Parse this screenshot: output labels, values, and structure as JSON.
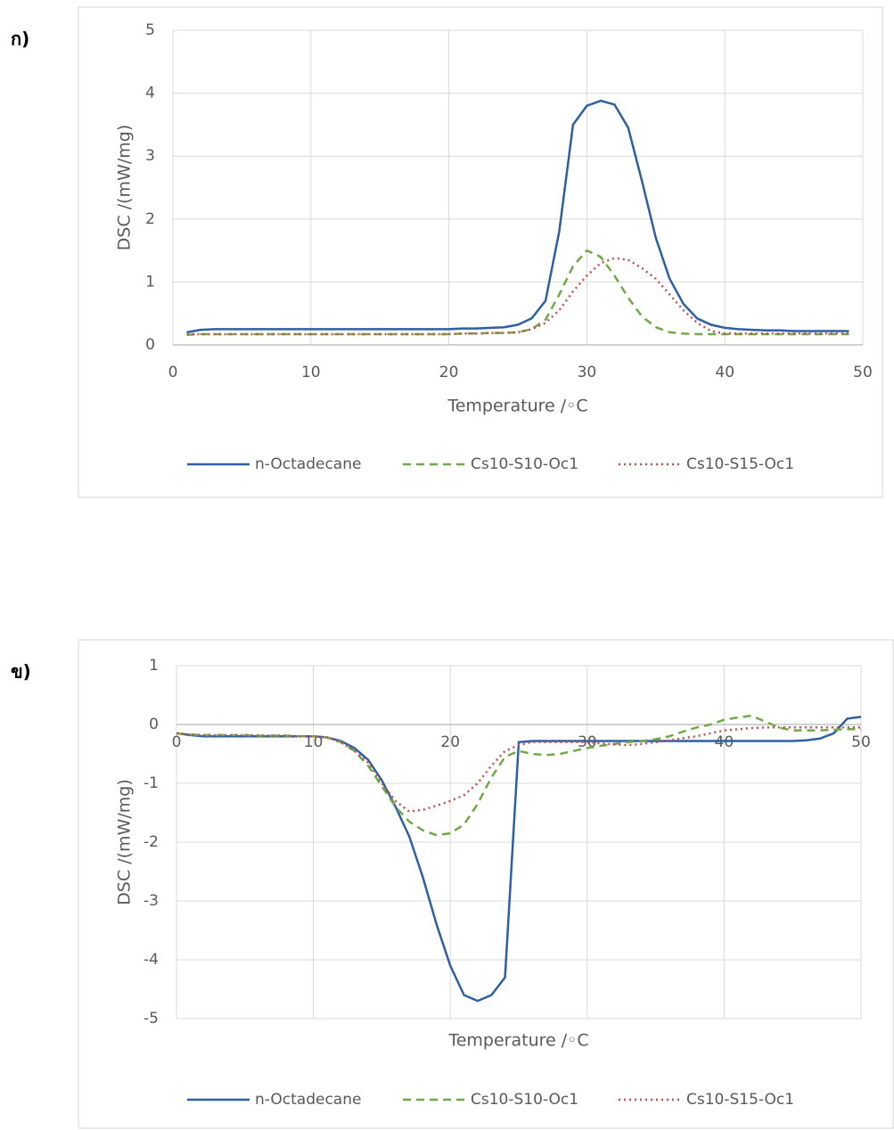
{
  "chart_data": [
    {
      "type": "line",
      "panel_label": "ก)",
      "xlabel": "Temperature /◦C",
      "ylabel": "DSC /(mW/mg)",
      "xlim": [
        0,
        50
      ],
      "xticks": [
        0,
        10,
        20,
        30,
        40,
        50
      ],
      "ylim": [
        0,
        5
      ],
      "yticks": [
        0,
        1,
        2,
        3,
        4,
        5
      ],
      "grid": true,
      "x": [
        0,
        1,
        2,
        3,
        4,
        5,
        6,
        7,
        8,
        9,
        10,
        11,
        12,
        13,
        14,
        15,
        16,
        17,
        18,
        19,
        20,
        21,
        22,
        23,
        24,
        25,
        26,
        27,
        28,
        29,
        30,
        31,
        32,
        33,
        34,
        35,
        36,
        37,
        38,
        39,
        40,
        41,
        42,
        43,
        44,
        45,
        46,
        47,
        48,
        49,
        50
      ],
      "series": [
        {
          "name": "n-Octadecane",
          "color": "#2e5fa3",
          "dash": "solid",
          "values": [
            null,
            0.2,
            0.24,
            0.25,
            0.25,
            0.25,
            0.25,
            0.25,
            0.25,
            0.25,
            0.25,
            0.25,
            0.25,
            0.25,
            0.25,
            0.25,
            0.25,
            0.25,
            0.25,
            0.25,
            0.25,
            0.26,
            0.26,
            0.27,
            0.28,
            0.32,
            0.42,
            0.7,
            1.8,
            3.5,
            3.8,
            3.88,
            3.82,
            3.45,
            2.6,
            1.7,
            1.05,
            0.65,
            0.42,
            0.32,
            0.27,
            0.25,
            0.24,
            0.23,
            0.23,
            0.22,
            0.22,
            0.22,
            0.22,
            0.22,
            null
          ]
        },
        {
          "name": "Cs10-S10-Oc1",
          "color": "#70a84a",
          "dash": "dashed",
          "values": [
            null,
            0.16,
            0.17,
            0.17,
            0.17,
            0.17,
            0.17,
            0.17,
            0.17,
            0.17,
            0.17,
            0.17,
            0.17,
            0.17,
            0.17,
            0.17,
            0.17,
            0.17,
            0.17,
            0.17,
            0.17,
            0.18,
            0.18,
            0.19,
            0.19,
            0.2,
            0.25,
            0.4,
            0.8,
            1.25,
            1.5,
            1.4,
            1.1,
            0.75,
            0.45,
            0.28,
            0.2,
            0.18,
            0.17,
            0.17,
            0.17,
            0.17,
            0.17,
            0.17,
            0.17,
            0.17,
            0.17,
            0.17,
            0.17,
            0.17,
            null
          ]
        },
        {
          "name": "Cs10-S15-Oc1",
          "color": "#c0504d",
          "dash": "dotted",
          "values": [
            null,
            0.17,
            0.17,
            0.17,
            0.17,
            0.17,
            0.17,
            0.17,
            0.17,
            0.17,
            0.17,
            0.17,
            0.17,
            0.17,
            0.17,
            0.17,
            0.17,
            0.17,
            0.17,
            0.17,
            0.17,
            0.18,
            0.18,
            0.19,
            0.19,
            0.2,
            0.25,
            0.35,
            0.55,
            0.85,
            1.1,
            1.3,
            1.38,
            1.35,
            1.22,
            1.05,
            0.8,
            0.55,
            0.35,
            0.22,
            0.18,
            0.18,
            0.18,
            0.18,
            0.18,
            0.18,
            0.18,
            0.18,
            0.18,
            0.18,
            null
          ]
        }
      ]
    },
    {
      "type": "line",
      "panel_label": "ข)",
      "xlabel": "Temperature /◦C",
      "ylabel": "DSC /(mW/mg)",
      "xlim": [
        0,
        50
      ],
      "xticks": [
        0,
        10,
        20,
        30,
        40,
        50
      ],
      "ylim": [
        -5,
        1
      ],
      "yticks": [
        -5,
        -4,
        -3,
        -2,
        -1,
        0,
        1
      ],
      "grid": true,
      "x": [
        0,
        1,
        2,
        3,
        4,
        5,
        6,
        7,
        8,
        9,
        10,
        11,
        12,
        13,
        14,
        15,
        16,
        17,
        18,
        19,
        20,
        21,
        22,
        23,
        24,
        25,
        26,
        27,
        28,
        29,
        30,
        31,
        32,
        33,
        34,
        35,
        36,
        37,
        38,
        39,
        40,
        41,
        42,
        43,
        44,
        45,
        46,
        47,
        48,
        49,
        50
      ],
      "series": [
        {
          "name": "n-Octadecane",
          "color": "#2e5fa3",
          "dash": "solid",
          "values": [
            -0.15,
            -0.18,
            -0.2,
            -0.2,
            -0.2,
            -0.2,
            -0.2,
            -0.2,
            -0.2,
            -0.2,
            -0.2,
            -0.22,
            -0.28,
            -0.4,
            -0.6,
            -0.95,
            -1.4,
            -1.9,
            -2.6,
            -3.4,
            -4.1,
            -4.6,
            -4.7,
            -4.6,
            -4.3,
            -0.3,
            -0.28,
            -0.28,
            -0.28,
            -0.28,
            -0.28,
            -0.28,
            -0.28,
            -0.28,
            -0.28,
            -0.28,
            -0.28,
            -0.28,
            -0.28,
            -0.28,
            -0.28,
            -0.28,
            -0.28,
            -0.28,
            -0.28,
            -0.28,
            -0.27,
            -0.24,
            -0.15,
            0.1,
            0.13
          ]
        },
        {
          "name": "Cs10-S10-Oc1",
          "color": "#70a84a",
          "dash": "dashed",
          "values": [
            -0.15,
            -0.17,
            -0.18,
            -0.18,
            -0.18,
            -0.18,
            -0.19,
            -0.19,
            -0.19,
            -0.2,
            -0.2,
            -0.22,
            -0.3,
            -0.45,
            -0.7,
            -1.05,
            -1.4,
            -1.65,
            -1.8,
            -1.88,
            -1.85,
            -1.7,
            -1.35,
            -0.9,
            -0.55,
            -0.45,
            -0.5,
            -0.52,
            -0.5,
            -0.45,
            -0.4,
            -0.36,
            -0.33,
            -0.3,
            -0.28,
            -0.25,
            -0.2,
            -0.12,
            -0.05,
            0.0,
            0.08,
            0.12,
            0.15,
            0.05,
            -0.05,
            -0.1,
            -0.1,
            -0.1,
            -0.09,
            -0.08,
            -0.08
          ]
        },
        {
          "name": "Cs10-S15-Oc1",
          "color": "#c0504d",
          "dash": "dotted",
          "values": [
            -0.15,
            -0.17,
            -0.18,
            -0.18,
            -0.18,
            -0.18,
            -0.19,
            -0.19,
            -0.19,
            -0.2,
            -0.2,
            -0.22,
            -0.3,
            -0.45,
            -0.65,
            -1.0,
            -1.3,
            -1.48,
            -1.45,
            -1.38,
            -1.3,
            -1.2,
            -1.0,
            -0.7,
            -0.45,
            -0.35,
            -0.3,
            -0.3,
            -0.3,
            -0.3,
            -0.3,
            -0.32,
            -0.34,
            -0.35,
            -0.33,
            -0.3,
            -0.27,
            -0.23,
            -0.2,
            -0.15,
            -0.1,
            -0.08,
            -0.06,
            -0.05,
            -0.05,
            -0.05,
            -0.05,
            -0.05,
            -0.05,
            -0.05,
            -0.05
          ]
        }
      ]
    }
  ]
}
